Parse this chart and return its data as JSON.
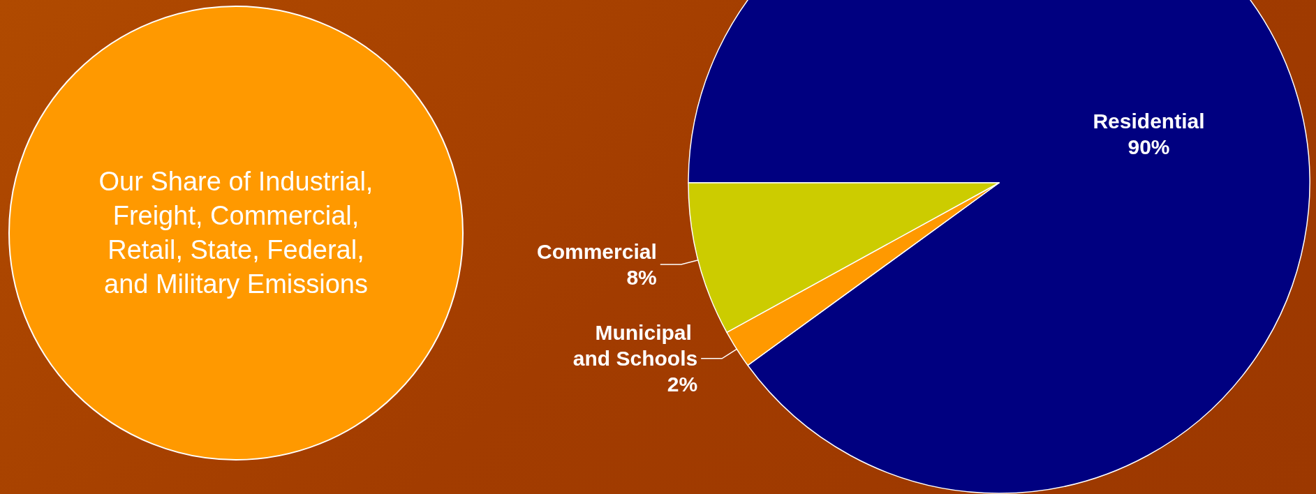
{
  "chart_data": {
    "type": "pie",
    "categories": [
      "Residential",
      "Municipal and Schools",
      "Commercial"
    ],
    "values": [
      90,
      2,
      8
    ],
    "colors": [
      "#000080",
      "#ff9900",
      "#cccc00"
    ],
    "value_labels": [
      "90%",
      "2%",
      "8%"
    ],
    "legend": false,
    "annotations": [
      "Our Share of Industrial, Freight, Commercial, Retail, State, Federal, and Military Emissions"
    ]
  }
}
